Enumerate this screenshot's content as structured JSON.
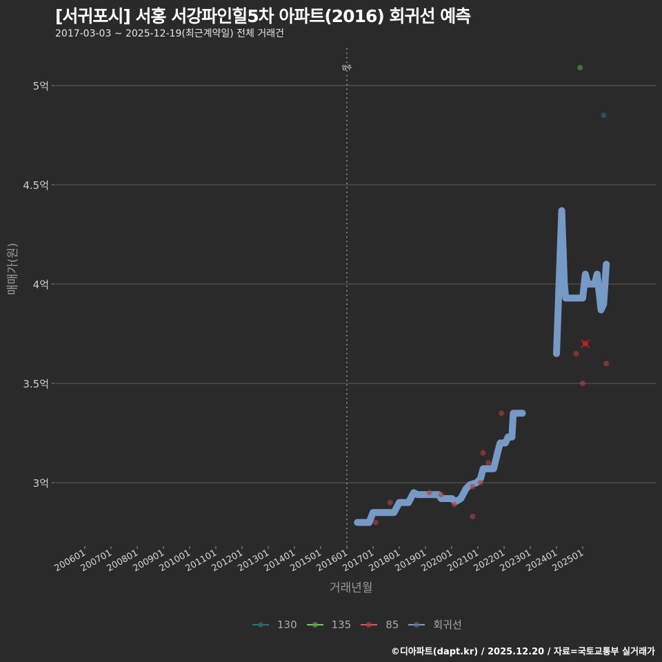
{
  "header": {
    "title": "[서귀포시] 서홍 서강파인힐5차 아파트(2016) 회귀선 예측",
    "subtitle": "2017-03-03 ~ 2025-12-19(최근계약일) 전체 거래건"
  },
  "axes": {
    "ylabel": "매매가(원)",
    "xlabel": "거래년월"
  },
  "annotation": {
    "label": "입주"
  },
  "legend": {
    "items": [
      {
        "label": "130",
        "color": "#1f7a7a"
      },
      {
        "label": "135",
        "color": "#6fcf5a"
      },
      {
        "label": "85",
        "color": "#e05555"
      },
      {
        "label": "회귀선",
        "color": "#7b9fcf"
      }
    ]
  },
  "footer": {
    "credit": "©디아파트(dapt.kr) / 2025.12.20 / 자료=국토교통부 실거래가"
  },
  "colors": {
    "background": "#2a2a2b",
    "grid": "#555555",
    "regression": "#7b9fcf",
    "s85": "#b04040",
    "s130": "#1f6f7a",
    "s135": "#5a9a4a",
    "highlight": "#e02020"
  },
  "chart_data": {
    "type": "scatter",
    "title": "[서귀포시] 서홍 서강파인힐5차 아파트(2016) 회귀선 예측",
    "subtitle": "2017-03-03 ~ 2025-12-19(최근계약일) 전체 거래건",
    "xlabel": "거래년월",
    "ylabel": "매매가(원)",
    "x_ticks": [
      "200601",
      "200701",
      "200801",
      "200901",
      "201001",
      "201101",
      "201201",
      "201301",
      "201401",
      "201501",
      "201601",
      "201701",
      "201801",
      "201901",
      "202001",
      "202101",
      "202201",
      "202301",
      "202401",
      "202501"
    ],
    "y_ticks": [
      {
        "value": 3.0,
        "label": "3억"
      },
      {
        "value": 3.5,
        "label": "3.5억"
      },
      {
        "value": 4.0,
        "label": "4억"
      },
      {
        "value": 4.5,
        "label": "4.5억"
      },
      {
        "value": 5.0,
        "label": "5억"
      }
    ],
    "ylim": [
      2.7,
      5.2
    ],
    "xlim": [
      2005.0,
      2026.4
    ],
    "vline": {
      "x": 2016.0,
      "label": "입주"
    },
    "legend_position": "bottom",
    "series": [
      {
        "name": "130",
        "type": "scatter",
        "points": [
          {
            "x": 2025.8,
            "y": 4.85
          }
        ]
      },
      {
        "name": "135",
        "type": "scatter",
        "points": [
          {
            "x": 2024.9,
            "y": 5.09
          }
        ]
      },
      {
        "name": "85",
        "type": "scatter",
        "points": [
          {
            "x": 2017.1,
            "y": 2.8
          },
          {
            "x": 2017.65,
            "y": 2.9
          },
          {
            "x": 2019.15,
            "y": 2.95
          },
          {
            "x": 2019.6,
            "y": 2.94
          },
          {
            "x": 2020.1,
            "y": 2.89
          },
          {
            "x": 2020.8,
            "y": 2.83
          },
          {
            "x": 2020.8,
            "y": 2.98
          },
          {
            "x": 2021.1,
            "y": 3.0
          },
          {
            "x": 2021.2,
            "y": 3.15
          },
          {
            "x": 2021.4,
            "y": 3.1
          },
          {
            "x": 2021.9,
            "y": 3.35
          },
          {
            "x": 2024.75,
            "y": 3.65
          },
          {
            "x": 2025.0,
            "y": 3.5
          },
          {
            "x": 2025.1,
            "y": 3.7,
            "highlight": true
          },
          {
            "x": 2025.9,
            "y": 3.6
          }
        ]
      },
      {
        "name": "회귀선",
        "type": "line",
        "points": [
          {
            "x": 2016.4,
            "y": 2.8
          },
          {
            "x": 2016.85,
            "y": 2.8
          },
          {
            "x": 2017.0,
            "y": 2.85
          },
          {
            "x": 2017.8,
            "y": 2.85
          },
          {
            "x": 2018.0,
            "y": 2.9
          },
          {
            "x": 2018.35,
            "y": 2.9
          },
          {
            "x": 2018.55,
            "y": 2.95
          },
          {
            "x": 2018.7,
            "y": 2.94
          },
          {
            "x": 2019.5,
            "y": 2.94
          },
          {
            "x": 2019.6,
            "y": 2.92
          },
          {
            "x": 2020.0,
            "y": 2.92
          },
          {
            "x": 2020.15,
            "y": 2.905
          },
          {
            "x": 2020.35,
            "y": 2.92
          },
          {
            "x": 2020.55,
            "y": 2.97
          },
          {
            "x": 2020.7,
            "y": 2.99
          },
          {
            "x": 2020.95,
            "y": 3.0
          },
          {
            "x": 2021.1,
            "y": 3.02
          },
          {
            "x": 2021.2,
            "y": 3.07
          },
          {
            "x": 2021.6,
            "y": 3.07
          },
          {
            "x": 2021.75,
            "y": 3.15
          },
          {
            "x": 2021.85,
            "y": 3.2
          },
          {
            "x": 2022.05,
            "y": 3.2
          },
          {
            "x": 2022.15,
            "y": 3.23
          },
          {
            "x": 2022.3,
            "y": 3.23
          },
          {
            "x": 2022.35,
            "y": 3.35
          },
          {
            "x": 2022.7,
            "y": 3.35
          }
        ],
        "points_segment2": [
          {
            "x": 2024.0,
            "y": 3.65
          },
          {
            "x": 2024.2,
            "y": 4.37
          },
          {
            "x": 2024.3,
            "y": 4.0
          },
          {
            "x": 2024.35,
            "y": 3.93
          },
          {
            "x": 2025.0,
            "y": 3.93
          },
          {
            "x": 2025.1,
            "y": 4.05
          },
          {
            "x": 2025.2,
            "y": 4.0
          },
          {
            "x": 2025.45,
            "y": 4.0
          },
          {
            "x": 2025.55,
            "y": 4.05
          },
          {
            "x": 2025.7,
            "y": 3.87
          },
          {
            "x": 2025.8,
            "y": 3.9
          },
          {
            "x": 2025.9,
            "y": 4.1
          }
        ]
      }
    ]
  }
}
